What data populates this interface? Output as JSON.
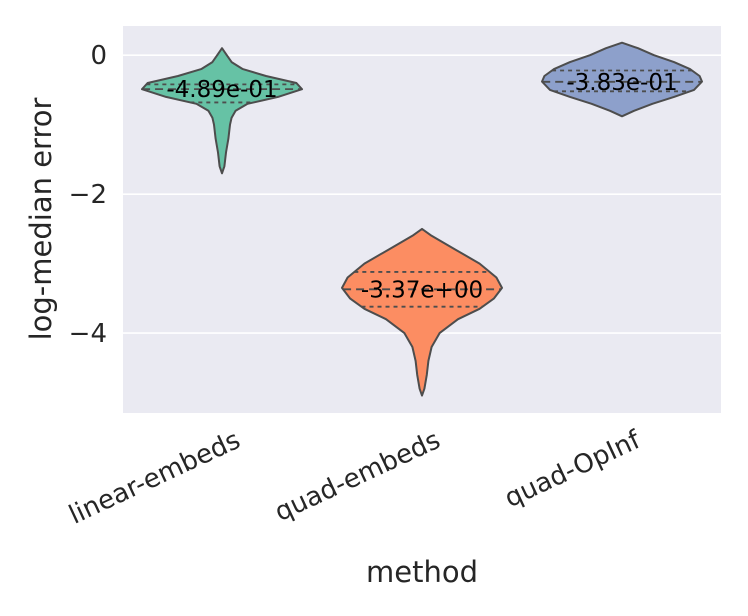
{
  "chart_data": {
    "type": "violin",
    "xlabel": "method",
    "ylabel": "log-median error",
    "ylim": [
      -5.15,
      0.42
    ],
    "yticks": [
      0,
      -2,
      -4
    ],
    "ytick_labels": [
      "0",
      "−2",
      "−4"
    ],
    "grid": true,
    "background": "#eaeaf2",
    "categories": [
      "linear-embeds",
      "quad-embeds",
      "quad-OpInf"
    ],
    "violins": [
      {
        "category": "linear-embeds",
        "color": "#66c2a5",
        "median": -0.489,
        "median_label": "-4.89e-01",
        "q1": -0.68,
        "q3": -0.42,
        "min": -1.7,
        "max": 0.1,
        "profile": [
          [
            0.1,
            0.0
          ],
          [
            0.0,
            0.06
          ],
          [
            -0.1,
            0.12
          ],
          [
            -0.2,
            0.26
          ],
          [
            -0.3,
            0.55
          ],
          [
            -0.4,
            0.93
          ],
          [
            -0.49,
            1.0
          ],
          [
            -0.6,
            0.7
          ],
          [
            -0.7,
            0.32
          ],
          [
            -0.8,
            0.17
          ],
          [
            -0.9,
            0.12
          ],
          [
            -1.0,
            0.1
          ],
          [
            -1.2,
            0.08
          ],
          [
            -1.4,
            0.05
          ],
          [
            -1.6,
            0.03
          ],
          [
            -1.7,
            0.0
          ]
        ]
      },
      {
        "category": "quad-embeds",
        "color": "#fc8d62",
        "median": -3.37,
        "median_label": "-3.37e+00",
        "q1": -3.62,
        "q3": -3.12,
        "min": -4.9,
        "max": -2.5,
        "profile": [
          [
            -2.5,
            0.0
          ],
          [
            -2.6,
            0.12
          ],
          [
            -2.8,
            0.42
          ],
          [
            -3.0,
            0.72
          ],
          [
            -3.2,
            0.93
          ],
          [
            -3.35,
            1.0
          ],
          [
            -3.5,
            0.9
          ],
          [
            -3.65,
            0.72
          ],
          [
            -3.8,
            0.45
          ],
          [
            -4.0,
            0.22
          ],
          [
            -4.2,
            0.12
          ],
          [
            -4.4,
            0.08
          ],
          [
            -4.6,
            0.06
          ],
          [
            -4.8,
            0.03
          ],
          [
            -4.9,
            0.0
          ]
        ]
      },
      {
        "category": "quad-OpInf",
        "color": "#8da0cb",
        "median": -0.383,
        "median_label": "-3.83e-01",
        "q1": -0.52,
        "q3": -0.22,
        "min": -0.88,
        "max": 0.18,
        "profile": [
          [
            0.18,
            0.0
          ],
          [
            0.1,
            0.2
          ],
          [
            0.0,
            0.4
          ],
          [
            -0.1,
            0.65
          ],
          [
            -0.2,
            0.85
          ],
          [
            -0.3,
            0.97
          ],
          [
            -0.38,
            1.0
          ],
          [
            -0.5,
            0.9
          ],
          [
            -0.6,
            0.65
          ],
          [
            -0.7,
            0.38
          ],
          [
            -0.8,
            0.15
          ],
          [
            -0.88,
            0.0
          ]
        ]
      }
    ]
  }
}
